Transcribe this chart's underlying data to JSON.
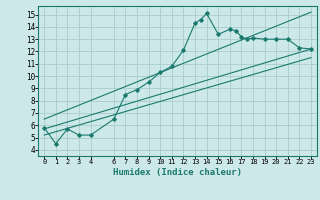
{
  "xlabel": "Humidex (Indice chaleur)",
  "background_color": "#cde8e8",
  "grid_color": "#afd0d0",
  "line_color": "#1a7a6e",
  "xlim": [
    -0.5,
    23.5
  ],
  "ylim": [
    3.5,
    15.7
  ],
  "xticks": [
    0,
    1,
    2,
    3,
    4,
    6,
    7,
    8,
    9,
    10,
    11,
    12,
    13,
    14,
    15,
    16,
    17,
    18,
    19,
    20,
    21,
    22,
    23
  ],
  "yticks": [
    4,
    5,
    6,
    7,
    8,
    9,
    10,
    11,
    12,
    13,
    14,
    15
  ],
  "main_x": [
    0,
    1,
    2,
    3,
    4,
    6,
    7,
    8,
    9,
    10,
    11,
    12,
    13,
    13.5,
    14,
    15,
    16,
    16.5,
    17,
    17.5,
    18,
    19,
    20,
    21,
    22,
    23
  ],
  "main_y": [
    5.8,
    4.5,
    5.7,
    5.2,
    5.2,
    6.5,
    8.5,
    8.9,
    9.5,
    10.3,
    10.8,
    12.1,
    14.3,
    14.6,
    15.1,
    13.4,
    13.8,
    13.7,
    13.2,
    13.0,
    13.1,
    13.0,
    13.0,
    13.0,
    12.3,
    12.2
  ],
  "trend1_x": [
    0,
    23
  ],
  "trend1_y": [
    5.7,
    12.2
  ],
  "trend2_x": [
    0,
    23
  ],
  "trend2_y": [
    6.5,
    15.2
  ],
  "trend3_x": [
    0,
    23
  ],
  "trend3_y": [
    5.2,
    11.5
  ]
}
